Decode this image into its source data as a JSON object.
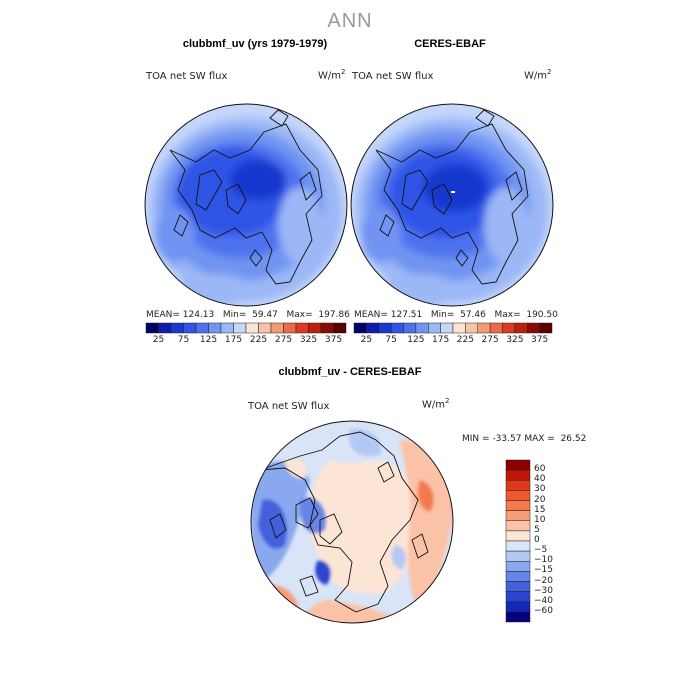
{
  "figure": {
    "title": "ANN"
  },
  "panels": [
    {
      "title": "clubbmf_uv (yrs 1979-1979)",
      "left_label": "TOA net SW flux",
      "unit_base": "W/m",
      "unit_exp": "2",
      "stats": {
        "mean_label": "MEAN=",
        "mean": "124.13",
        "min_label": "Min=",
        "min": "59.47",
        "max_label": "Max=",
        "max": "197.86"
      }
    },
    {
      "title": "CERES-EBAF",
      "left_label": "TOA net SW flux",
      "unit_base": "W/m",
      "unit_exp": "2",
      "stats": {
        "mean_label": "MEAN=",
        "mean": "127.51",
        "min_label": "Min=",
        "min": "57.46",
        "max_label": "Max=",
        "max": "190.50"
      }
    },
    {
      "title": "clubbmf_uv - CERES-EBAF",
      "left_label": "TOA net SW flux",
      "unit_base": "W/m",
      "unit_exp": "2",
      "stats": {
        "min_label": "MIN =",
        "min": "-33.57",
        "max_label": "MAX =",
        "max": "26.52"
      }
    }
  ],
  "chart_data": [
    {
      "type": "heatmap",
      "projection": "north-polar-stereographic",
      "title": "clubbmf_uv (yrs 1979-1979)",
      "variable": "TOA net SW flux",
      "units": "W/m2",
      "colorbar": {
        "orientation": "horizontal",
        "levels": [
          25,
          50,
          75,
          100,
          125,
          150,
          175,
          200,
          225,
          250,
          275,
          300,
          325,
          350,
          375
        ],
        "tick_labels": [
          "25",
          "75",
          "125",
          "175",
          "225",
          "275",
          "325",
          "375"
        ],
        "colors": [
          "#07006b",
          "#0e1ea8",
          "#1938cf",
          "#2f55e6",
          "#4d72ee",
          "#7194f2",
          "#9bb7f6",
          "#c4d6fa",
          "#fde4d2",
          "#f9c3a6",
          "#f39b77",
          "#e96b49",
          "#d83d23",
          "#bb1f10",
          "#8a0a05",
          "#5a0000"
        ]
      },
      "stats": {
        "mean": 124.13,
        "min": 59.47,
        "max": 197.86
      }
    },
    {
      "type": "heatmap",
      "projection": "north-polar-stereographic",
      "title": "CERES-EBAF",
      "variable": "TOA net SW flux",
      "units": "W/m2",
      "colorbar": {
        "orientation": "horizontal",
        "levels": [
          25,
          50,
          75,
          100,
          125,
          150,
          175,
          200,
          225,
          250,
          275,
          300,
          325,
          350,
          375
        ],
        "tick_labels": [
          "25",
          "75",
          "125",
          "175",
          "225",
          "275",
          "325",
          "375"
        ],
        "colors": [
          "#07006b",
          "#0e1ea8",
          "#1938cf",
          "#2f55e6",
          "#4d72ee",
          "#7194f2",
          "#9bb7f6",
          "#c4d6fa",
          "#fde4d2",
          "#f9c3a6",
          "#f39b77",
          "#e96b49",
          "#d83d23",
          "#bb1f10",
          "#8a0a05",
          "#5a0000"
        ]
      },
      "stats": {
        "mean": 127.51,
        "min": 57.46,
        "max": 190.5
      }
    },
    {
      "type": "heatmap",
      "projection": "north-polar-stereographic",
      "title": "clubbmf_uv - CERES-EBAF",
      "variable": "TOA net SW flux",
      "units": "W/m2",
      "colorbar": {
        "orientation": "vertical",
        "levels": [
          -60,
          -40,
          -30,
          -20,
          -15,
          -10,
          -5,
          0,
          5,
          10,
          15,
          20,
          30,
          40,
          60
        ],
        "tick_labels": [
          "60",
          "40",
          "30",
          "20",
          "15",
          "10",
          "5",
          "0",
          "−5",
          "−10",
          "−15",
          "−20",
          "−30",
          "−40",
          "−60"
        ],
        "colors": [
          "#8b0000",
          "#c0150a",
          "#e0361a",
          "#f0592e",
          "#f47a4e",
          "#f79e78",
          "#fac2a6",
          "#fde5d6",
          "#d9e4f7",
          "#b3c9f3",
          "#8aa8ee",
          "#6685e6",
          "#4262dc",
          "#2a44cf",
          "#1428b6",
          "#07007d"
        ]
      },
      "stats": {
        "min": -33.57,
        "max": 26.52
      }
    }
  ]
}
